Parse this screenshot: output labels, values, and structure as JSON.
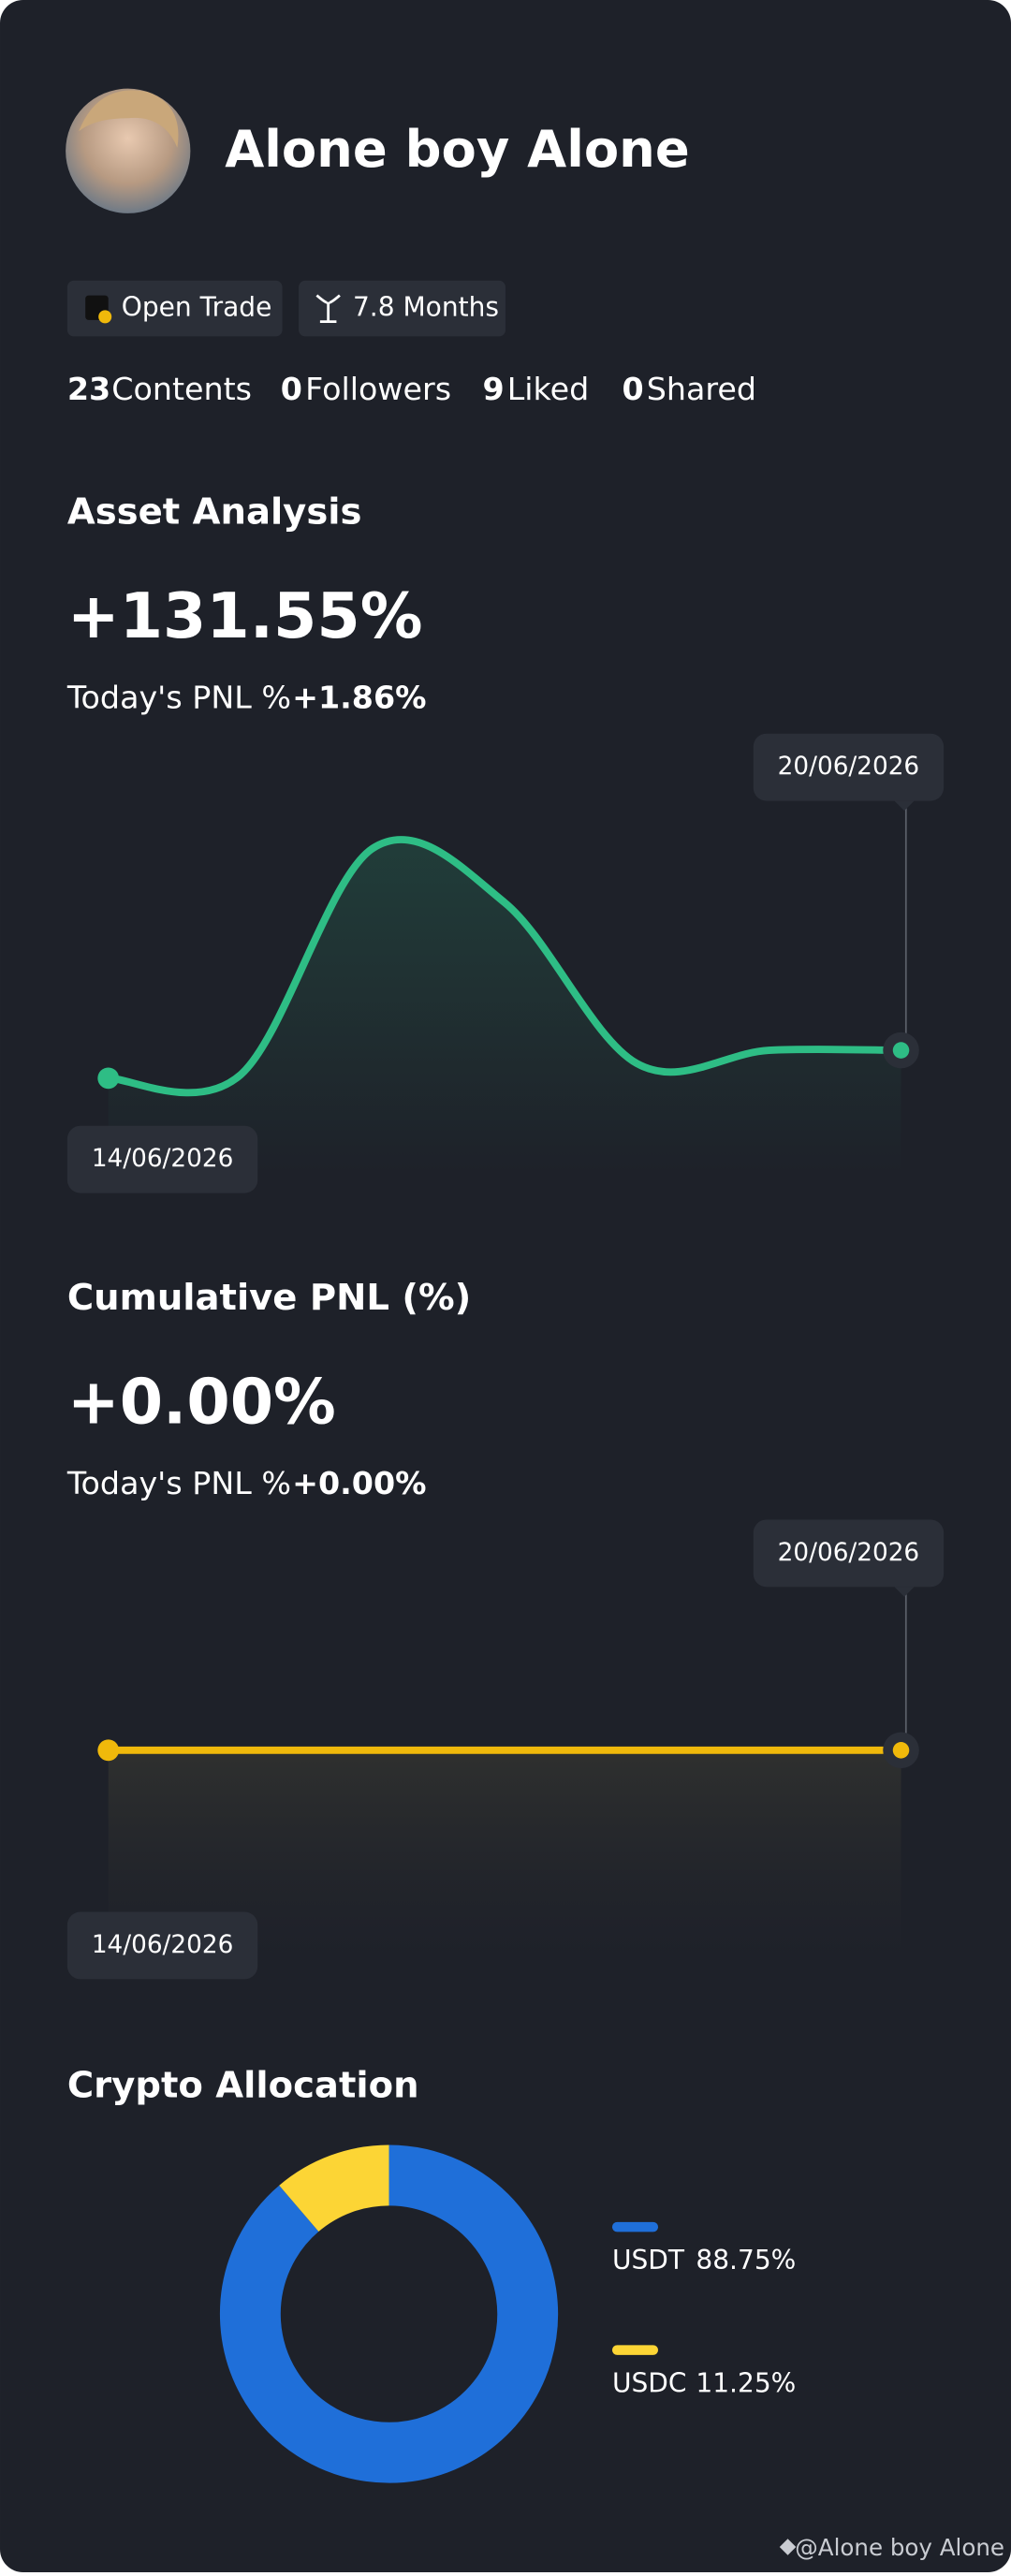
{
  "profile": {
    "name": "Alone boy Alone",
    "tags": [
      "Open Trade",
      "7.8 Months"
    ],
    "stats": [
      {
        "value": 23,
        "label": "Contents"
      },
      {
        "value": 0,
        "label": "Followers"
      },
      {
        "value": 9,
        "label": "Liked"
      },
      {
        "value": 0,
        "label": "Shared"
      }
    ]
  },
  "chart_data": [
    {
      "type": "line",
      "title": "Asset Analysis",
      "headline": "+131.55%",
      "subtitle": "Today's PNL %",
      "today": "+1.86%",
      "x": [
        "14/06/2026",
        null,
        null,
        null,
        null,
        null,
        "20/06/2026"
      ],
      "series": [
        {
          "color": "#2ebd85",
          "values": [
            0,
            2,
            140,
            107,
            9,
            17,
            17
          ]
        }
      ],
      "ylim": [
        -58,
        197
      ]
    },
    {
      "type": "line",
      "title": "Cumulative PNL (%)",
      "headline": "+0.00%",
      "subtitle": "Today's PNL %",
      "today": "+0.00%",
      "x": [
        "14/06/2026",
        null,
        null,
        null,
        null,
        null,
        "20/06/2026"
      ],
      "series": [
        {
          "color": "#f0b90b",
          "values": [
            0,
            0,
            0,
            0,
            0,
            0,
            0
          ]
        }
      ],
      "ylim": [
        -1,
        1
      ]
    },
    {
      "type": "donut",
      "title": "Crypto Allocation",
      "categories": [
        "USDT",
        "USDC"
      ],
      "values": [
        88.75,
        11.25
      ],
      "value_labels": [
        "88.75%",
        "11.25%"
      ],
      "colors": [
        "#1f6fd9",
        "#fcd535"
      ]
    }
  ],
  "footer": "@Alone boy Alone"
}
